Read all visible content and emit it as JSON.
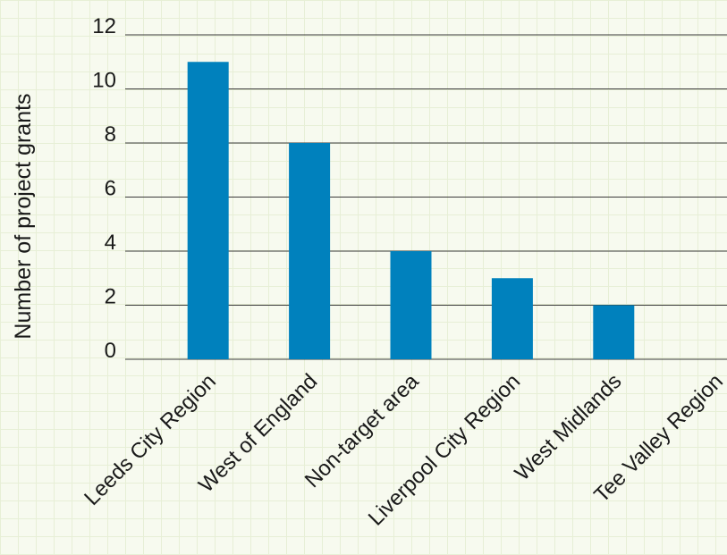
{
  "chart_data": {
    "type": "bar",
    "title": "",
    "xlabel": "",
    "ylabel": "Number of project grants",
    "categories": [
      "Leeds City Region",
      "West of England",
      "Non-target area",
      "Liverpool City Region",
      "West Midlands",
      "Tee Valley Region"
    ],
    "values": [
      11,
      8,
      4,
      3,
      2,
      0
    ],
    "ylim": [
      0,
      12
    ],
    "yticks": [
      0,
      2,
      4,
      6,
      8,
      10,
      12
    ],
    "grid": true,
    "bar_color": "#0081bd",
    "legend": null
  }
}
